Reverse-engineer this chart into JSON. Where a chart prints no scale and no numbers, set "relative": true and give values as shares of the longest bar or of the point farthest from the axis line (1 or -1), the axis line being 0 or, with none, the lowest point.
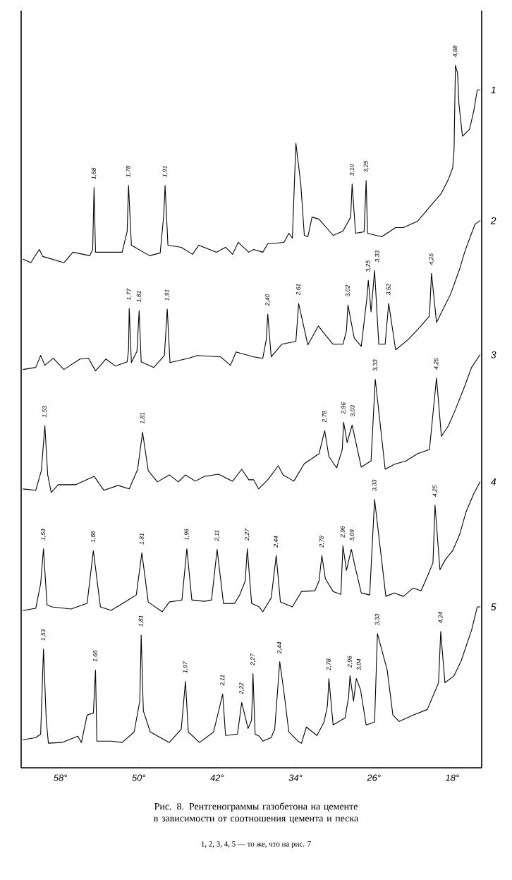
{
  "chart_data": {
    "type": "line",
    "relative": true,
    "title": "Рис. 8. Рентгенограммы газобетона на цементе в зависимости от соотношения цемента и песка",
    "annotations": [
      "1, 2, 3, 4, 5 — то же, что на рис. 7",
      {
        "text": "1,68",
        "x": 54.56,
        "y": 0.826
      },
      {
        "text": "1,78",
        "x": 51.04,
        "y": 0.829
      },
      {
        "text": "1,91",
        "x": 47.31,
        "y": 0.829
      },
      {
        "text": "3,10",
        "x": 28.22,
        "y": 0.831
      },
      {
        "text": "3,25",
        "x": 26.79,
        "y": 0.836
      },
      {
        "text": "4,88",
        "x": 17.68,
        "y": 1.0
      },
      {
        "text": "1,77",
        "x": 50.97,
        "y": 0.654
      },
      {
        "text": "1,81",
        "x": 49.96,
        "y": 0.651
      },
      {
        "text": "1,91",
        "x": 47.09,
        "y": 0.653
      },
      {
        "text": "2,40",
        "x": 36.83,
        "y": 0.646
      },
      {
        "text": "2,61",
        "x": 33.68,
        "y": 0.661
      },
      {
        "text": "3,02",
        "x": 28.65,
        "y": 0.659
      },
      {
        "text": "3,25",
        "x": 26.57,
        "y": 0.694
      },
      {
        "text": "3,33",
        "x": 25.93,
        "y": 0.708
      },
      {
        "text": "3,52",
        "x": 24.49,
        "y": 0.661
      },
      {
        "text": "4,25",
        "x": 20.12,
        "y": 0.704
      },
      {
        "text": "1,53",
        "x": 59.58,
        "y": 0.487
      },
      {
        "text": "1,81",
        "x": 49.61,
        "y": 0.478
      },
      {
        "text": "2,78",
        "x": 31.02,
        "y": 0.48
      },
      {
        "text": "2,96",
        "x": 29.09,
        "y": 0.492
      },
      {
        "text": "3,03",
        "x": 28.22,
        "y": 0.488
      },
      {
        "text": "3,33",
        "x": 25.86,
        "y": 0.553
      },
      {
        "text": "4,25",
        "x": 19.61,
        "y": 0.555
      },
      {
        "text": "1,53",
        "x": 59.72,
        "y": 0.312
      },
      {
        "text": "1,66",
        "x": 54.63,
        "y": 0.309
      },
      {
        "text": "1,81",
        "x": 49.68,
        "y": 0.306
      },
      {
        "text": "1,96",
        "x": 45.09,
        "y": 0.312
      },
      {
        "text": "2,11",
        "x": 42.0,
        "y": 0.311
      },
      {
        "text": "2,27",
        "x": 38.92,
        "y": 0.312
      },
      {
        "text": "2,44",
        "x": 35.97,
        "y": 0.302
      },
      {
        "text": "2,78",
        "x": 31.31,
        "y": 0.302
      },
      {
        "text": "2,96",
        "x": 29.16,
        "y": 0.316
      },
      {
        "text": "3,09",
        "x": 28.3,
        "y": 0.311
      },
      {
        "text": "3,33",
        "x": 25.93,
        "y": 0.382
      },
      {
        "text": "4,25",
        "x": 19.76,
        "y": 0.374
      },
      {
        "text": "1,53",
        "x": 59.72,
        "y": 0.169
      },
      {
        "text": "1,66",
        "x": 54.41,
        "y": 0.139
      },
      {
        "text": "1,81",
        "x": 49.75,
        "y": 0.189
      },
      {
        "text": "1,97",
        "x": 45.23,
        "y": 0.123
      },
      {
        "text": "2,11",
        "x": 41.43,
        "y": 0.105
      },
      {
        "text": "2,22",
        "x": 39.49,
        "y": 0.093
      },
      {
        "text": "2,27",
        "x": 38.34,
        "y": 0.134
      },
      {
        "text": "2,44",
        "x": 35.61,
        "y": 0.151
      },
      {
        "text": "2,78",
        "x": 30.59,
        "y": 0.127
      },
      {
        "text": "2,96",
        "x": 28.44,
        "y": 0.131
      },
      {
        "text": "3,04",
        "x": 27.79,
        "y": 0.127
      },
      {
        "text": "3,33",
        "x": 25.64,
        "y": 0.191
      },
      {
        "text": "4,24",
        "x": 19.18,
        "y": 0.194
      }
    ],
    "xlim": [
      62,
      15
    ],
    "xticks": [
      {
        "value": 58,
        "label": "58°"
      },
      {
        "value": 50,
        "label": "50°"
      },
      {
        "value": 42,
        "label": "42°"
      },
      {
        "value": 34,
        "label": "34°"
      },
      {
        "value": 26,
        "label": "26°"
      },
      {
        "value": 18,
        "label": "18°"
      }
    ],
    "series": [
      {
        "name": "1",
        "color": "#000000",
        "x": [
          61.8,
          61.01,
          60.15,
          59.79,
          57.64,
          56.71,
          54.99,
          54.7,
          54.56,
          54.41,
          52.83,
          51.69,
          51.18,
          51.04,
          50.75,
          48.89,
          47.81,
          47.45,
          47.31,
          47.02,
          45.66,
          44.51,
          43.87,
          42.07,
          41.14,
          40.42,
          39.85,
          38.77,
          38.27,
          37.34,
          36.83,
          35.18,
          34.68,
          34.32,
          33.96,
          33.46,
          33.1,
          32.74,
          32.31,
          31.6,
          30.16,
          29.16,
          28.37,
          28.22,
          27.87,
          27.0,
          26.79,
          26.65,
          25.21,
          23.78,
          22.99,
          21.55,
          20.33,
          19.11,
          18.39,
          17.96,
          17.82,
          17.68,
          17.46,
          17.32,
          16.96,
          16.24,
          15.81,
          15.45,
          15.17
        ],
        "values": [
          0.724,
          0.719,
          0.738,
          0.728,
          0.719,
          0.734,
          0.729,
          0.738,
          0.826,
          0.734,
          0.734,
          0.734,
          0.764,
          0.829,
          0.744,
          0.729,
          0.733,
          0.786,
          0.829,
          0.744,
          0.741,
          0.731,
          0.744,
          0.734,
          0.741,
          0.731,
          0.748,
          0.734,
          0.738,
          0.734,
          0.746,
          0.748,
          0.761,
          0.754,
          0.889,
          0.831,
          0.758,
          0.756,
          0.784,
          0.781,
          0.758,
          0.764,
          0.784,
          0.831,
          0.761,
          0.763,
          0.836,
          0.761,
          0.756,
          0.769,
          0.769,
          0.778,
          0.798,
          0.818,
          0.838,
          0.854,
          0.878,
          1.0,
          0.989,
          0.945,
          0.899,
          0.909,
          0.935,
          0.965,
          0.965
        ]
      },
      {
        "name": "2",
        "color": "#000000",
        "x": [
          61.8,
          60.51,
          60.01,
          59.58,
          58.72,
          57.64,
          55.99,
          55.13,
          54.41,
          53.34,
          52.4,
          51.18,
          51.04,
          50.97,
          50.75,
          50.18,
          49.96,
          49.75,
          48.46,
          47.38,
          47.09,
          46.81,
          44.94,
          44.01,
          41.64,
          40.64,
          40.06,
          38.27,
          37.34,
          36.98,
          36.83,
          36.48,
          35.4,
          33.96,
          33.68,
          32.74,
          31.67,
          30.88,
          30.16,
          29.16,
          28.8,
          28.65,
          28.01,
          27.29,
          26.72,
          26.57,
          26.29,
          25.93,
          25.5,
          24.85,
          24.49,
          23.78,
          22.48,
          21.26,
          20.33,
          20.12,
          19.61,
          18.9,
          18.18,
          17.25,
          16.74,
          16.03,
          15.67,
          15.17
        ],
        "values": [
          0.567,
          0.57,
          0.587,
          0.573,
          0.583,
          0.567,
          0.582,
          0.583,
          0.565,
          0.582,
          0.572,
          0.578,
          0.595,
          0.654,
          0.577,
          0.593,
          0.651,
          0.578,
          0.57,
          0.587,
          0.653,
          0.577,
          0.583,
          0.587,
          0.585,
          0.573,
          0.592,
          0.585,
          0.583,
          0.61,
          0.646,
          0.585,
          0.603,
          0.607,
          0.661,
          0.602,
          0.629,
          0.615,
          0.603,
          0.603,
          0.622,
          0.659,
          0.612,
          0.6,
          0.668,
          0.694,
          0.649,
          0.708,
          0.603,
          0.603,
          0.661,
          0.595,
          0.61,
          0.628,
          0.643,
          0.704,
          0.634,
          0.654,
          0.674,
          0.71,
          0.734,
          0.761,
          0.774,
          0.779
        ]
      },
      {
        "name": "3",
        "color": "#000000",
        "x": [
          61.8,
          60.51,
          59.94,
          59.58,
          59.29,
          58.93,
          58.22,
          56.42,
          54.56,
          53.55,
          52.12,
          50.97,
          50.11,
          49.61,
          49.03,
          48.1,
          46.88,
          45.95,
          45.23,
          44.22,
          43.29,
          41.86,
          40.42,
          39.49,
          38.77,
          38.27,
          37.77,
          36.83,
          35.76,
          35.26,
          34.18,
          33.1,
          31.6,
          31.02,
          30.59,
          29.8,
          29.23,
          29.09,
          28.73,
          28.22,
          27.29,
          26.29,
          25.86,
          24.85,
          23.92,
          22.7,
          21.55,
          20.33,
          19.61,
          19.11,
          18.39,
          17.68,
          16.74,
          16.03,
          15.17
        ],
        "values": [
          0.397,
          0.395,
          0.423,
          0.487,
          0.417,
          0.392,
          0.403,
          0.403,
          0.415,
          0.395,
          0.402,
          0.397,
          0.425,
          0.478,
          0.423,
          0.407,
          0.417,
          0.407,
          0.417,
          0.408,
          0.415,
          0.418,
          0.408,
          0.425,
          0.41,
          0.41,
          0.397,
          0.41,
          0.43,
          0.417,
          0.408,
          0.433,
          0.447,
          0.48,
          0.443,
          0.427,
          0.453,
          0.492,
          0.463,
          0.488,
          0.428,
          0.437,
          0.553,
          0.425,
          0.432,
          0.437,
          0.447,
          0.453,
          0.555,
          0.472,
          0.487,
          0.51,
          0.543,
          0.57,
          0.588
        ]
      },
      {
        "name": "4",
        "color": "#000000",
        "x": [
          61.8,
          60.51,
          60.01,
          59.72,
          59.36,
          58.86,
          56.92,
          55.27,
          54.63,
          53.91,
          52.83,
          51.4,
          50.25,
          49.68,
          49.03,
          47.6,
          46.88,
          45.59,
          45.09,
          44.58,
          43.29,
          42.57,
          42.0,
          41.35,
          40.21,
          39.7,
          39.13,
          38.92,
          38.48,
          37.7,
          37.34,
          36.48,
          35.97,
          35.54,
          34.32,
          33.39,
          32.03,
          31.6,
          31.31,
          30.95,
          30.16,
          29.37,
          29.16,
          28.8,
          28.3,
          28.01,
          27.29,
          26.43,
          25.93,
          24.78,
          23.92,
          22.99,
          21.98,
          21.19,
          20.55,
          19.97,
          19.76,
          19.26,
          18.68,
          17.96,
          17.25,
          16.6,
          15.81,
          15.17
        ],
        "values": [
          0.224,
          0.227,
          0.262,
          0.312,
          0.232,
          0.229,
          0.226,
          0.234,
          0.309,
          0.229,
          0.224,
          0.236,
          0.246,
          0.306,
          0.236,
          0.222,
          0.236,
          0.239,
          0.312,
          0.239,
          0.237,
          0.239,
          0.311,
          0.234,
          0.234,
          0.246,
          0.266,
          0.312,
          0.234,
          0.229,
          0.222,
          0.242,
          0.302,
          0.236,
          0.229,
          0.251,
          0.252,
          0.266,
          0.302,
          0.269,
          0.251,
          0.247,
          0.316,
          0.281,
          0.311,
          0.292,
          0.249,
          0.246,
          0.382,
          0.244,
          0.249,
          0.244,
          0.256,
          0.252,
          0.272,
          0.292,
          0.374,
          0.282,
          0.297,
          0.309,
          0.332,
          0.364,
          0.39,
          0.407
        ]
      },
      {
        "name": "5",
        "color": "#000000",
        "x": [
          61.8,
          60.51,
          60.01,
          59.72,
          59.44,
          59.22,
          57.86,
          56.21,
          55.85,
          55.27,
          54.63,
          54.41,
          54.27,
          52.83,
          51.69,
          50.47,
          49.89,
          49.75,
          49.53,
          48.82,
          46.88,
          45.66,
          45.23,
          44.94,
          43.79,
          42.36,
          41.43,
          41.14,
          39.92,
          39.49,
          38.84,
          38.48,
          38.34,
          38.12,
          37.7,
          37.34,
          36.48,
          36.12,
          35.61,
          35.18,
          34.68,
          33.75,
          33.39,
          32.89,
          31.81,
          31.09,
          30.74,
          30.59,
          30.16,
          28.94,
          28.58,
          28.44,
          28.08,
          27.79,
          27.36,
          26.79,
          25.93,
          25.64,
          24.64,
          24.06,
          23.42,
          21.98,
          20.55,
          19.4,
          19.18,
          18.75,
          17.82,
          17.1,
          16.03,
          15.45,
          15.17
        ],
        "values": [
          0.04,
          0.043,
          0.048,
          0.169,
          0.068,
          0.035,
          0.036,
          0.045,
          0.036,
          0.075,
          0.078,
          0.139,
          0.038,
          0.038,
          0.036,
          0.051,
          0.095,
          0.189,
          0.081,
          0.051,
          0.036,
          0.055,
          0.123,
          0.051,
          0.036,
          0.051,
          0.105,
          0.046,
          0.048,
          0.093,
          0.056,
          0.068,
          0.134,
          0.048,
          0.045,
          0.038,
          0.043,
          0.055,
          0.151,
          0.108,
          0.051,
          0.038,
          0.035,
          0.058,
          0.046,
          0.065,
          0.088,
          0.127,
          0.061,
          0.071,
          0.101,
          0.131,
          0.095,
          0.127,
          0.111,
          0.061,
          0.065,
          0.191,
          0.139,
          0.075,
          0.066,
          0.075,
          0.083,
          0.121,
          0.194,
          0.121,
          0.131,
          0.152,
          0.196,
          0.229,
          0.229
        ]
      }
    ]
  }
}
